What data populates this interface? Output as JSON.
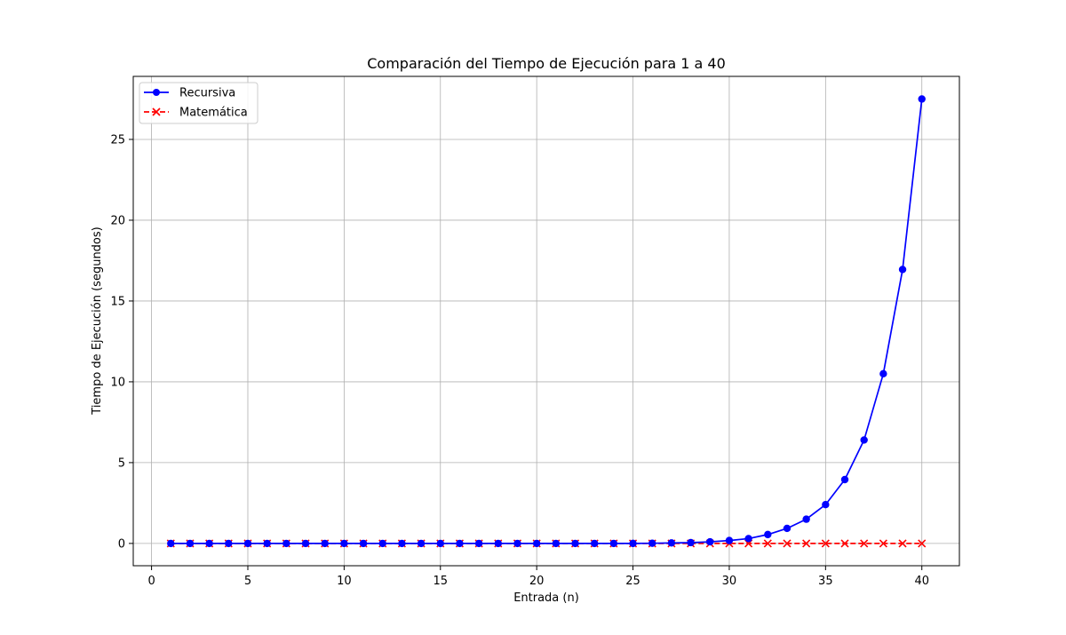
{
  "chart_data": {
    "type": "line",
    "title": "Comparación del Tiempo de Ejecución para 1 a 40",
    "xlabel": "Entrada (n)",
    "ylabel": "Tiempo de Ejecución (segundos)",
    "xlim": [
      -0.95,
      41.95
    ],
    "ylim": [
      -1.38,
      28.9
    ],
    "x_ticks": [
      0,
      5,
      10,
      15,
      20,
      25,
      30,
      35,
      40
    ],
    "x_tick_labels": [
      "0",
      "5",
      "10",
      "15",
      "20",
      "25",
      "30",
      "35",
      "40"
    ],
    "y_ticks": [
      0,
      5,
      10,
      15,
      20,
      25
    ],
    "y_tick_labels": [
      "0",
      "5",
      "10",
      "15",
      "20",
      "25"
    ],
    "grid": true,
    "legend_position": "top-left",
    "x": [
      1,
      2,
      3,
      4,
      5,
      6,
      7,
      8,
      9,
      10,
      11,
      12,
      13,
      14,
      15,
      16,
      17,
      18,
      19,
      20,
      21,
      22,
      23,
      24,
      25,
      26,
      27,
      28,
      29,
      30,
      31,
      32,
      33,
      34,
      35,
      36,
      37,
      38,
      39,
      40
    ],
    "series": [
      {
        "name": "Recursiva",
        "color": "#0000ff",
        "line_style": "solid",
        "marker": "circle",
        "values": [
          0,
          0,
          0,
          0,
          0,
          0,
          0,
          0,
          0,
          0,
          0,
          0,
          0,
          0,
          0,
          0,
          0,
          0,
          0,
          0,
          0,
          0,
          0,
          0,
          0.001,
          0.01,
          0.03,
          0.05,
          0.1,
          0.18,
          0.3,
          0.55,
          0.93,
          1.5,
          2.4,
          3.95,
          6.4,
          10.5,
          16.95,
          27.5
        ]
      },
      {
        "name": "Matemática",
        "color": "#ff0000",
        "line_style": "dashed",
        "marker": "x",
        "values": [
          0,
          0,
          0,
          0,
          0,
          0,
          0,
          0,
          0,
          0,
          0,
          0,
          0,
          0,
          0,
          0,
          0,
          0,
          0,
          0,
          0,
          0,
          0,
          0,
          0,
          0,
          0,
          0,
          0,
          0,
          0,
          0,
          0,
          0,
          0,
          0,
          0,
          0,
          0,
          0
        ]
      }
    ]
  }
}
